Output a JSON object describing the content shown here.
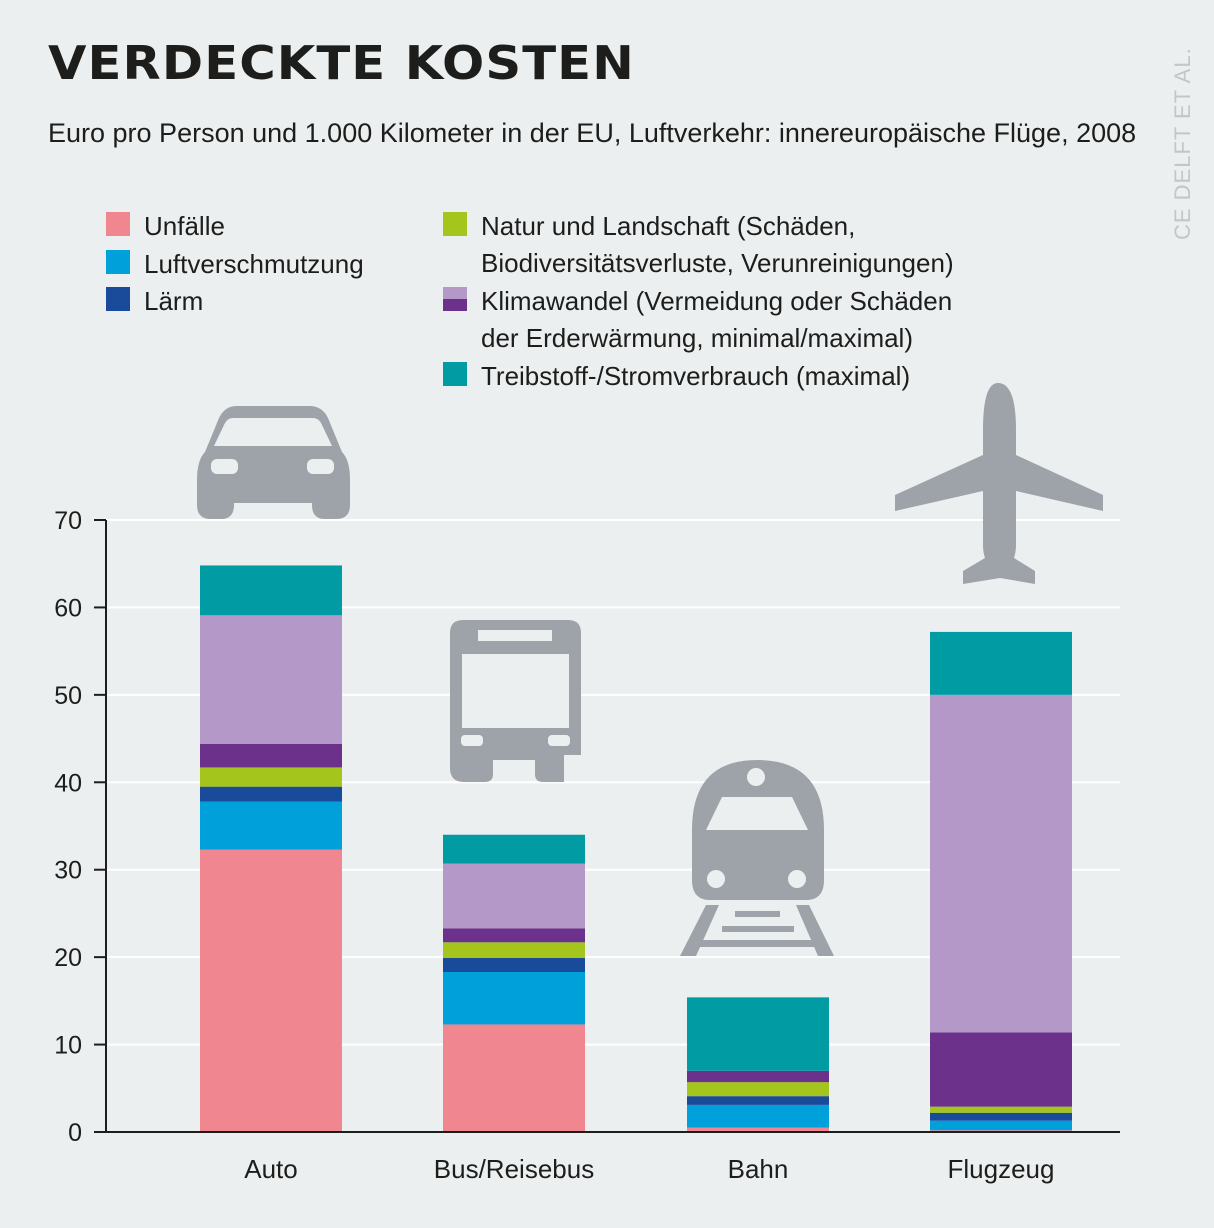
{
  "title": "VERDECKTE KOSTEN",
  "subtitle": "Euro pro Person und 1.000 Kilometer in der EU, Luftverkehr: innereuropäische Flüge, 2008",
  "source": "CE DELFT ET AL.",
  "legend": [
    {
      "label": "Unfälle",
      "color": "#f08790"
    },
    {
      "label": "Luftverschmutzung",
      "color": "#00a0db"
    },
    {
      "label": "Lärm",
      "color": "#1a4a9a"
    },
    {
      "label": "Natur und Landschaft (Schäden,",
      "label2": "Biodiversitätsverluste, Verunreinigungen)",
      "color": "#a3c51c"
    },
    {
      "label": "Klimawandel (Vermeidung oder Schäden",
      "label2": "der Erderwärmung, minimal/maximal)",
      "color_min": "#b398c8",
      "color_max": "#6b318b"
    },
    {
      "label": "Treibstoff-/Stromverbrauch (maximal)",
      "color": "#009ba3"
    }
  ],
  "icons": [
    "car-icon",
    "bus-icon",
    "train-icon",
    "airplane-icon"
  ],
  "chart_data": {
    "type": "bar",
    "stacked": true,
    "categories": [
      "Auto",
      "Bus/Reisebus",
      "Bahn",
      "Flugzeug"
    ],
    "ylim": [
      0,
      70
    ],
    "yticks": [
      0,
      10,
      20,
      30,
      40,
      50,
      60,
      70
    ],
    "grid": true,
    "series": [
      {
        "name": "Unfälle",
        "color": "#f08790",
        "values": [
          32.3,
          12.3,
          0.5,
          0.2
        ]
      },
      {
        "name": "Luftverschmutzung",
        "color": "#00a0db",
        "values": [
          5.5,
          6.0,
          2.6,
          1.1
        ]
      },
      {
        "name": "Lärm",
        "color": "#1a4a9a",
        "values": [
          1.7,
          1.6,
          1.0,
          0.9
        ]
      },
      {
        "name": "Natur und Landschaft",
        "color": "#a3c51c",
        "values": [
          2.2,
          1.8,
          1.6,
          0.7
        ]
      },
      {
        "name": "Klimawandel (maximal)",
        "color": "#6b318b",
        "values": [
          2.7,
          1.6,
          1.3,
          8.5
        ]
      },
      {
        "name": "Klimawandel (minimal)",
        "color": "#b398c8",
        "values": [
          14.7,
          7.4,
          0,
          38.6
        ]
      },
      {
        "name": "Treibstoff-/Stromverbrauch (maximal)",
        "color": "#009ba3",
        "values": [
          5.7,
          3.3,
          8.4,
          7.2
        ]
      }
    ]
  }
}
